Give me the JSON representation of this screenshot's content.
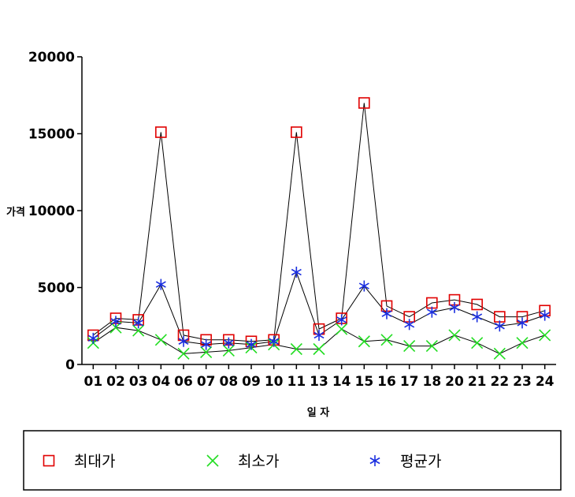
{
  "chart_data": {
    "type": "line",
    "title": "",
    "xlabel": "일 자",
    "ylabel": "가격",
    "ylim": [
      0,
      20000
    ],
    "yticks": [
      0,
      5000,
      10000,
      15000,
      20000
    ],
    "grid": false,
    "legend_position": "bottom",
    "categories": [
      "01",
      "02",
      "03",
      "04",
      "06",
      "07",
      "08",
      "09",
      "10",
      "11",
      "13",
      "14",
      "15",
      "16",
      "17",
      "18",
      "20",
      "21",
      "22",
      "23",
      "24"
    ],
    "series": [
      {
        "name": "최대가",
        "marker": "square",
        "color": "#e00000",
        "values": [
          1900,
          3000,
          2900,
          15100,
          1900,
          1600,
          1600,
          1500,
          1600,
          15100,
          2300,
          3000,
          17000,
          3800,
          3100,
          4000,
          4200,
          3900,
          3100,
          3100,
          3500
        ]
      },
      {
        "name": "최소가",
        "marker": "x",
        "color": "#22dd22",
        "values": [
          1400,
          2400,
          2200,
          1600,
          700,
          800,
          900,
          1100,
          1300,
          1000,
          1000,
          2300,
          1500,
          1600,
          1200,
          1200,
          1900,
          1400,
          700,
          1400,
          1900
        ]
      },
      {
        "name": "평균가",
        "marker": "asterisk",
        "color": "#1a2ee0",
        "values": [
          1700,
          2800,
          2700,
          5200,
          1500,
          1300,
          1400,
          1300,
          1500,
          6000,
          1900,
          2900,
          5100,
          3300,
          2600,
          3400,
          3700,
          3100,
          2500,
          2700,
          3200
        ]
      }
    ]
  }
}
